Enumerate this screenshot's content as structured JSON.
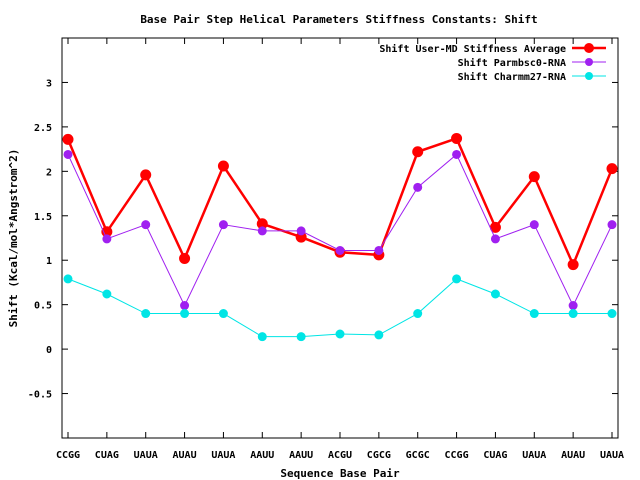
{
  "chart_data": {
    "type": "line",
    "title": "Base Pair Step Helical Parameters Stiffness Constants: Shift",
    "xlabel": "Sequence Base Pair",
    "ylabel": "Shift (Kcal/mol*Angstrom^2)",
    "categories": [
      "CCGG",
      "CUAG",
      "UAUA",
      "AUAU",
      "UAUA",
      "AAUU",
      "AAUU",
      "ACGU",
      "CGCG",
      "GCGC",
      "CCGG",
      "CUAG",
      "UAUA",
      "AUAU",
      "UAUA"
    ],
    "ylim": [
      -1,
      3.5
    ],
    "yticks": [
      -0.5,
      0,
      0.5,
      1,
      1.5,
      2,
      2.5,
      3
    ],
    "ytick_labels": [
      "-0.5",
      "0",
      "0.5",
      "1",
      "1.5",
      "2",
      "2.5",
      "3"
    ],
    "grid": false,
    "legend_position": "top-right",
    "series": [
      {
        "name": "Shift User-MD Stiffness Average",
        "color": "#ff0000",
        "values": [
          2.36,
          1.32,
          1.96,
          1.02,
          2.06,
          1.41,
          1.26,
          1.09,
          1.06,
          2.22,
          2.37,
          1.37,
          1.94,
          0.95,
          2.03
        ]
      },
      {
        "name": "Shift Parmbsc0-RNA",
        "color": "#a020f0",
        "values": [
          2.19,
          1.24,
          1.4,
          0.49,
          1.4,
          1.33,
          1.33,
          1.11,
          1.11,
          1.82,
          2.19,
          1.24,
          1.4,
          0.49,
          1.4
        ]
      },
      {
        "name": "Shift Charmm27-RNA",
        "color": "#00e5e5",
        "values": [
          0.79,
          0.62,
          0.4,
          0.4,
          0.4,
          0.14,
          0.14,
          0.17,
          0.16,
          0.4,
          0.79,
          0.62,
          0.4,
          0.4,
          0.4
        ]
      }
    ]
  }
}
